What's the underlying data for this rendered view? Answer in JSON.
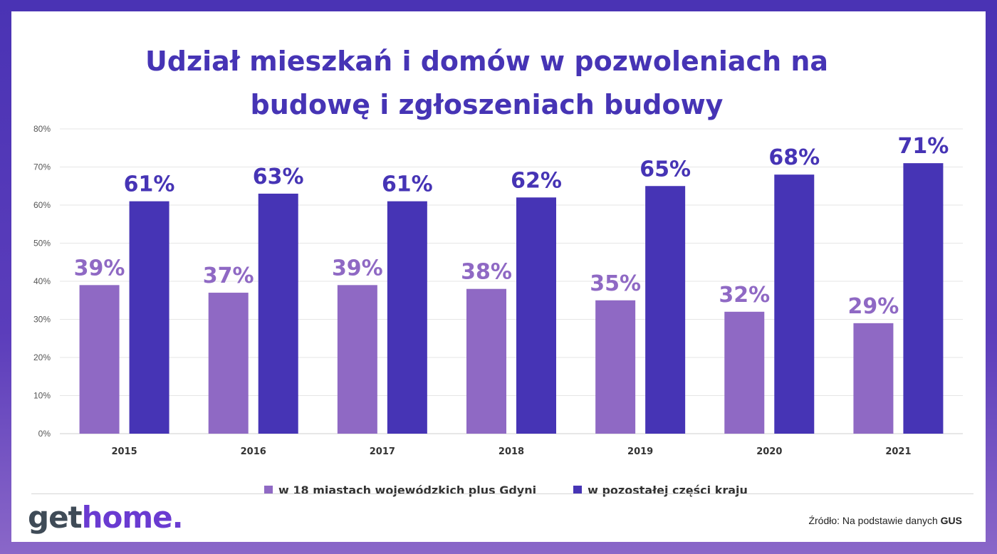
{
  "title": {
    "line1": "Udział mieszkań i domów w pozwoleniach na",
    "line2": "budowę i zgłoszeniach budowy"
  },
  "colors": {
    "series1": "#8f69c4",
    "series2": "#4634b5",
    "frame": "#4a33b4"
  },
  "chart_data": {
    "type": "bar",
    "title": "Udział mieszkań i domów w pozwoleniach na budowę i zgłoszeniach budowy",
    "categories": [
      "2015",
      "2016",
      "2017",
      "2018",
      "2019",
      "2020",
      "2021"
    ],
    "series": [
      {
        "name": "w 18 miastach wojewódzkich plus Gdyni",
        "values": [
          39,
          37,
          39,
          38,
          35,
          32,
          29
        ]
      },
      {
        "name": "w pozostałej części kraju",
        "values": [
          61,
          63,
          61,
          62,
          65,
          68,
          71
        ]
      }
    ],
    "ylim": [
      0,
      80
    ],
    "yticks": [
      0,
      10,
      20,
      30,
      40,
      50,
      60,
      70,
      80
    ],
    "ytick_format": "%",
    "grid": true,
    "legend": "bottom"
  },
  "legend": {
    "item1": "w 18 miastach wojewódzkich plus Gdyni",
    "item2": "w pozostałej części kraju"
  },
  "logo": {
    "part1": "get",
    "part2": "home."
  },
  "source": {
    "prefix": "Źródło: Na podstawie danych ",
    "bold": "GUS"
  }
}
